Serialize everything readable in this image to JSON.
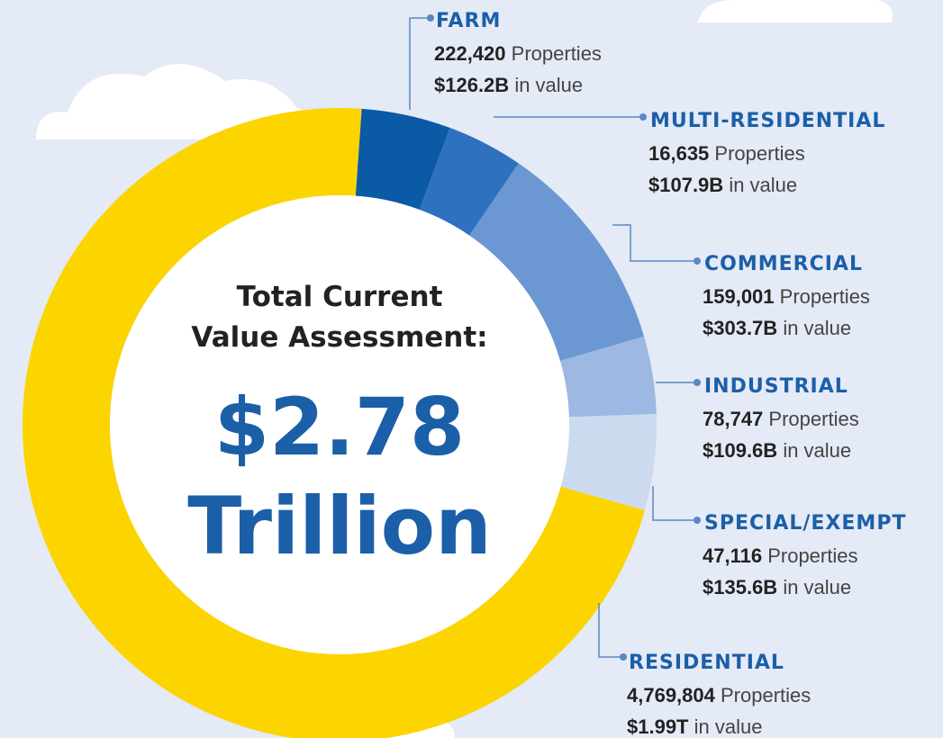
{
  "chart_data": {
    "type": "pie",
    "donut": true,
    "center_title": [
      "Total Current",
      "Value Assessment:"
    ],
    "center_value": [
      "$2.78",
      "Trillion"
    ],
    "categories": [
      "FARM",
      "MULTI-RESIDENTIAL",
      "COMMERCIAL",
      "INDUSTRIAL",
      "SPECIAL/EXEMPT",
      "RESIDENTIAL"
    ],
    "values": [
      126.2,
      107.9,
      303.7,
      109.6,
      135.6,
      1990
    ],
    "value_labels": [
      "$126.2B",
      "$107.9B",
      "$303.7B",
      "$109.6B",
      "$135.6B",
      "$1.99T"
    ],
    "properties": [
      222420,
      16635,
      159001,
      78747,
      47116,
      4769804
    ],
    "properties_labels": [
      "222,420",
      "16,635",
      "159,001",
      "78,747",
      "47,116",
      "4,769,804"
    ],
    "properties_text": "Properties",
    "value_text": "in value",
    "colors": [
      "#0a5aa6",
      "#2e72bf",
      "#6b97d2",
      "#9db8e2",
      "#ccdaf0",
      "#fcd400"
    ]
  }
}
